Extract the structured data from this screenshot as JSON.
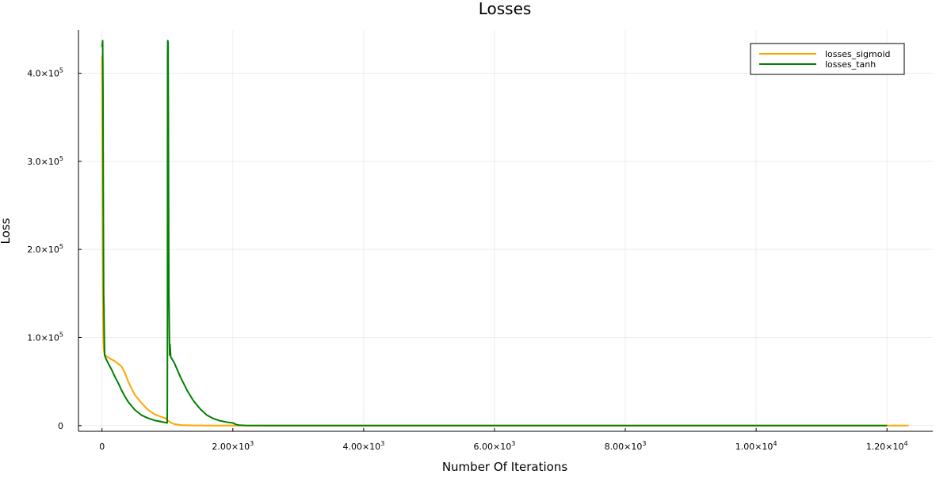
{
  "chart_data": {
    "type": "line",
    "title": "Losses",
    "xlabel": "Number Of Iterations",
    "ylabel": "Loss",
    "xlim": [
      -360,
      12700
    ],
    "ylim": [
      -6500,
      449000
    ],
    "grid": true,
    "legend_position": "top-right",
    "x_ticks": [
      {
        "value": 0,
        "mantissa": "0",
        "exponent": ""
      },
      {
        "value": 2000,
        "mantissa": "2.00×10",
        "exponent": "3"
      },
      {
        "value": 4000,
        "mantissa": "4.00×10",
        "exponent": "3"
      },
      {
        "value": 6000,
        "mantissa": "6.00×10",
        "exponent": "3"
      },
      {
        "value": 8000,
        "mantissa": "8.00×10",
        "exponent": "3"
      },
      {
        "value": 10000,
        "mantissa": "1.00×10",
        "exponent": "4"
      },
      {
        "value": 12000,
        "mantissa": "1.20×10",
        "exponent": "4"
      }
    ],
    "y_ticks": [
      {
        "value": 0,
        "mantissa": "0",
        "exponent": ""
      },
      {
        "value": 100000,
        "mantissa": "1.0×10",
        "exponent": "5"
      },
      {
        "value": 200000,
        "mantissa": "2.0×10",
        "exponent": "5"
      },
      {
        "value": 300000,
        "mantissa": "3.0×10",
        "exponent": "5"
      },
      {
        "value": 400000,
        "mantissa": "4.0×10",
        "exponent": "5"
      }
    ],
    "series": [
      {
        "name": "losses_sigmoid",
        "color": "#FFA500",
        "points": [
          [
            0,
            420000
          ],
          [
            5,
            300000
          ],
          [
            10,
            200000
          ],
          [
            15,
            130000
          ],
          [
            20,
            100000
          ],
          [
            25,
            88000
          ],
          [
            35,
            82000
          ],
          [
            60,
            79000
          ],
          [
            100,
            77000
          ],
          [
            200,
            73000
          ],
          [
            300,
            67000
          ],
          [
            350,
            60000
          ],
          [
            400,
            50000
          ],
          [
            500,
            35000
          ],
          [
            600,
            26000
          ],
          [
            700,
            18000
          ],
          [
            800,
            13000
          ],
          [
            900,
            10000
          ],
          [
            980,
            8000
          ],
          [
            1000,
            6000
          ],
          [
            1050,
            3500
          ],
          [
            1100,
            1800
          ],
          [
            1200,
            600
          ],
          [
            1400,
            150
          ],
          [
            1600,
            50
          ],
          [
            2000,
            0
          ],
          [
            6000,
            0
          ],
          [
            12000,
            0
          ],
          [
            12330,
            0
          ]
        ]
      },
      {
        "name": "losses_tanh",
        "color": "#008000",
        "points": [
          [
            0,
            430000
          ],
          [
            10,
            437000
          ],
          [
            15,
            380000
          ],
          [
            20,
            250000
          ],
          [
            25,
            150000
          ],
          [
            30,
            132000
          ],
          [
            35,
            100000
          ],
          [
            40,
            80000
          ],
          [
            60,
            76000
          ],
          [
            100,
            70000
          ],
          [
            150,
            63000
          ],
          [
            200,
            55000
          ],
          [
            250,
            48000
          ],
          [
            300,
            40000
          ],
          [
            350,
            33000
          ],
          [
            400,
            27000
          ],
          [
            500,
            18000
          ],
          [
            600,
            12000
          ],
          [
            700,
            8500
          ],
          [
            800,
            6000
          ],
          [
            900,
            4500
          ],
          [
            996,
            3000
          ],
          [
            999,
            30000
          ],
          [
            1001,
            150000
          ],
          [
            1002,
            300000
          ],
          [
            1003,
            420000
          ],
          [
            1005,
            437000
          ],
          [
            1010,
            435000
          ],
          [
            1013,
            380000
          ],
          [
            1018,
            250000
          ],
          [
            1022,
            150000
          ],
          [
            1026,
            132000
          ],
          [
            1030,
            100000
          ],
          [
            1035,
            80000
          ],
          [
            1040,
            92000
          ],
          [
            1050,
            78000
          ],
          [
            1100,
            72000
          ],
          [
            1200,
            55000
          ],
          [
            1300,
            40000
          ],
          [
            1400,
            28000
          ],
          [
            1500,
            19000
          ],
          [
            1600,
            12000
          ],
          [
            1700,
            8000
          ],
          [
            1800,
            5500
          ],
          [
            1900,
            4000
          ],
          [
            2000,
            3000
          ],
          [
            2050,
            1200
          ],
          [
            2100,
            500
          ],
          [
            2200,
            150
          ],
          [
            2500,
            0
          ],
          [
            6000,
            0
          ],
          [
            12000,
            0
          ]
        ]
      }
    ]
  }
}
